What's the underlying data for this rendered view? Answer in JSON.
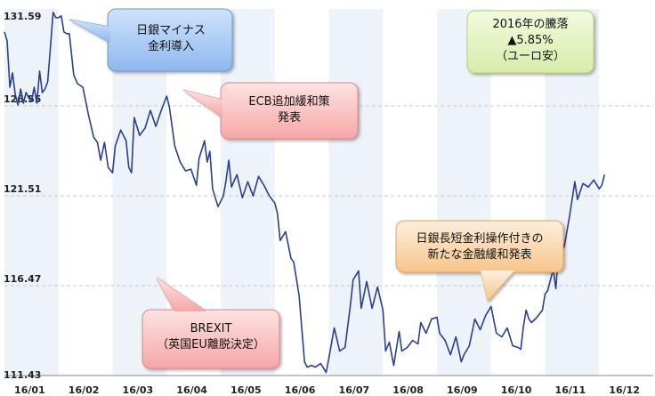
{
  "chart_data": {
    "type": "line",
    "title": "",
    "xlabel": "",
    "ylabel": "",
    "categories": [
      "16/01",
      "16/02",
      "16/03",
      "16/04",
      "16/05",
      "16/06",
      "16/07",
      "16/08",
      "16/09",
      "16/10",
      "16/11",
      "16/12"
    ],
    "y_ticks": [
      "131.59",
      "126.55",
      "121.51",
      "116.47",
      "111.43"
    ],
    "ylim": [
      111.43,
      131.59
    ],
    "grid": true,
    "colors": {
      "line": "#2b3f8f",
      "grid": "#c8c8c8",
      "band": "#eef2f9"
    },
    "series": [
      {
        "values": [
          [
            0.0,
            130.7
          ],
          [
            0.05,
            130.2
          ],
          [
            0.1,
            127.6
          ],
          [
            0.15,
            128.4
          ],
          [
            0.2,
            127.2
          ],
          [
            0.25,
            126.6
          ],
          [
            0.3,
            127.5
          ],
          [
            0.35,
            126.7
          ],
          [
            0.4,
            127.3
          ],
          [
            0.45,
            127.0
          ],
          [
            0.5,
            126.8
          ],
          [
            0.55,
            127.6
          ],
          [
            0.6,
            126.7
          ],
          [
            0.65,
            128.5
          ],
          [
            0.7,
            127.3
          ],
          [
            0.75,
            127.5
          ],
          [
            0.8,
            127.9
          ],
          [
            0.85,
            129.8
          ],
          [
            0.9,
            131.8
          ],
          [
            0.95,
            131.5
          ],
          [
            1.0,
            131.5
          ],
          [
            1.05,
            131.6
          ],
          [
            1.1,
            130.7
          ],
          [
            1.15,
            130.6
          ],
          [
            1.2,
            130.6
          ],
          [
            1.28,
            128.3
          ],
          [
            1.35,
            127.8
          ],
          [
            1.45,
            127.6
          ],
          [
            1.55,
            126.1
          ],
          [
            1.65,
            124.8
          ],
          [
            1.72,
            124.5
          ],
          [
            1.78,
            123.5
          ],
          [
            1.85,
            124.5
          ],
          [
            1.92,
            123.1
          ],
          [
            2.0,
            122.8
          ],
          [
            2.05,
            124.3
          ],
          [
            2.15,
            125.2
          ],
          [
            2.25,
            124.6
          ],
          [
            2.3,
            123.1
          ],
          [
            2.35,
            122.8
          ],
          [
            2.4,
            125.9
          ],
          [
            2.5,
            124.9
          ],
          [
            2.6,
            125.3
          ],
          [
            2.7,
            126.3
          ],
          [
            2.8,
            125.4
          ],
          [
            2.9,
            126.3
          ],
          [
            3.0,
            127.1
          ],
          [
            3.05,
            126.5
          ],
          [
            3.15,
            124.3
          ],
          [
            3.25,
            123.4
          ],
          [
            3.35,
            122.9
          ],
          [
            3.45,
            123.0
          ],
          [
            3.55,
            122.1
          ],
          [
            3.6,
            123.6
          ],
          [
            3.7,
            124.6
          ],
          [
            3.75,
            123.4
          ],
          [
            3.8,
            124.0
          ],
          [
            3.85,
            121.9
          ],
          [
            3.95,
            120.9
          ],
          [
            4.05,
            121.5
          ],
          [
            4.1,
            122.4
          ],
          [
            4.15,
            123.5
          ],
          [
            4.2,
            122.0
          ],
          [
            4.3,
            122.7
          ],
          [
            4.4,
            121.4
          ],
          [
            4.5,
            122.3
          ],
          [
            4.6,
            121.5
          ],
          [
            4.7,
            122.6
          ],
          [
            4.8,
            122.1
          ],
          [
            4.9,
            121.5
          ],
          [
            5.0,
            121.1
          ],
          [
            5.05,
            120.5
          ],
          [
            5.1,
            119.0
          ],
          [
            5.2,
            119.5
          ],
          [
            5.3,
            118.0
          ],
          [
            5.35,
            117.8
          ],
          [
            5.45,
            115.9
          ],
          [
            5.55,
            112.2
          ],
          [
            5.6,
            111.9
          ],
          [
            5.68,
            112.0
          ],
          [
            5.75,
            111.9
          ],
          [
            5.85,
            112.1
          ],
          [
            5.95,
            111.6
          ],
          [
            6.0,
            112.4
          ],
          [
            6.1,
            114.1
          ],
          [
            6.2,
            112.8
          ],
          [
            6.3,
            113.0
          ],
          [
            6.4,
            115.4
          ],
          [
            6.45,
            116.8
          ],
          [
            6.55,
            117.3
          ],
          [
            6.6,
            115.2
          ],
          [
            6.7,
            116.7
          ],
          [
            6.8,
            115.2
          ],
          [
            6.9,
            116.4
          ],
          [
            7.0,
            115.1
          ],
          [
            7.05,
            112.8
          ],
          [
            7.12,
            113.3
          ],
          [
            7.2,
            112.0
          ],
          [
            7.3,
            113.9
          ],
          [
            7.35,
            112.8
          ],
          [
            7.45,
            113.0
          ],
          [
            7.55,
            113.4
          ],
          [
            7.65,
            113.2
          ],
          [
            7.7,
            114.4
          ],
          [
            7.8,
            113.8
          ],
          [
            7.9,
            114.6
          ],
          [
            8.0,
            114.7
          ],
          [
            8.05,
            113.8
          ],
          [
            8.15,
            113.4
          ],
          [
            8.25,
            112.6
          ],
          [
            8.35,
            113.6
          ],
          [
            8.45,
            112.2
          ],
          [
            8.5,
            112.6
          ],
          [
            8.6,
            113.1
          ],
          [
            8.7,
            114.6
          ],
          [
            8.8,
            114.0
          ],
          [
            8.9,
            114.8
          ],
          [
            9.0,
            115.3
          ],
          [
            9.1,
            113.8
          ],
          [
            9.2,
            113.6
          ],
          [
            9.3,
            114.1
          ],
          [
            9.4,
            113.1
          ],
          [
            9.5,
            113.0
          ],
          [
            9.55,
            112.9
          ],
          [
            9.6,
            114.2
          ],
          [
            9.65,
            115.1
          ],
          [
            9.7,
            114.6
          ],
          [
            9.75,
            114.4
          ],
          [
            9.85,
            114.7
          ],
          [
            9.95,
            115.1
          ],
          [
            10.0,
            116.0
          ],
          [
            10.05,
            116.2
          ],
          [
            10.15,
            117.4
          ],
          [
            10.2,
            116.3
          ],
          [
            10.25,
            118.5
          ],
          [
            10.3,
            119.1
          ],
          [
            10.35,
            118.6
          ],
          [
            10.45,
            120.3
          ],
          [
            10.55,
            122.3
          ],
          [
            10.6,
            121.3
          ],
          [
            10.7,
            122.2
          ],
          [
            10.8,
            122.0
          ],
          [
            10.9,
            122.4
          ],
          [
            11.0,
            121.9
          ],
          [
            11.05,
            122.1
          ],
          [
            11.1,
            122.7
          ]
        ]
      }
    ]
  },
  "annotations": {
    "boj_negative_rate": "日銀マイナス\n金利導入",
    "ecb_easing": "ECB追加緩和策\n発表",
    "brexit": "BREXIT\n（英国EU離脱決定）",
    "boj_yield_curve": "日銀長短金利操作付きの\n新たな金融緩和発表",
    "yearly_change": "2016年の騰落\n▲5.85%\n（ユーロ安）"
  }
}
